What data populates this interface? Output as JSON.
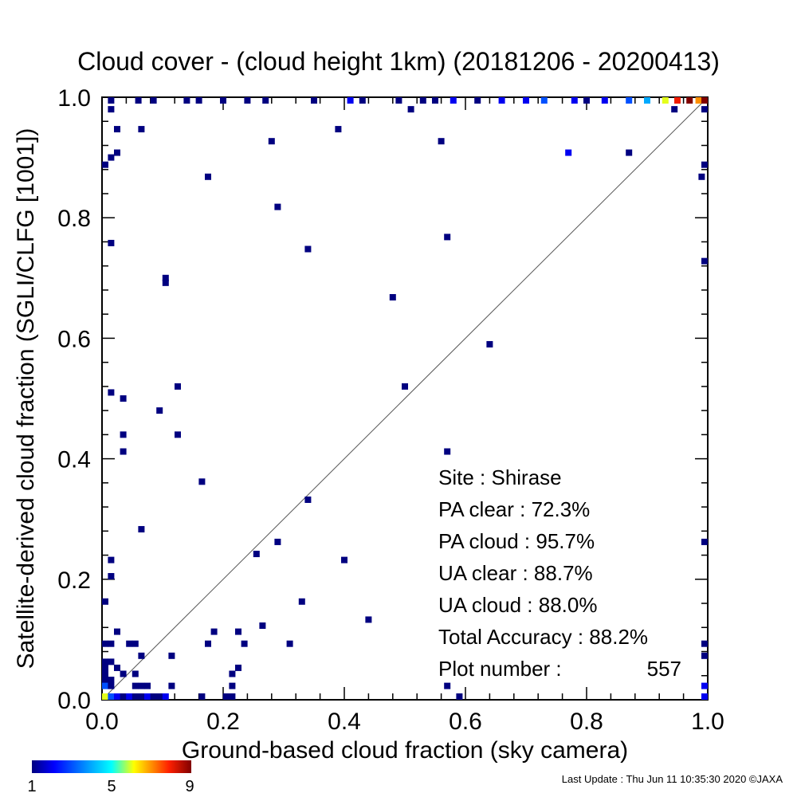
{
  "chart_data": {
    "type": "scatter",
    "title": "Cloud cover - (cloud height 1km)  (20181206 - 20200413)",
    "xlabel": "Ground-based cloud fraction (sky camera)",
    "ylabel": "Satellite-derived cloud fraction (SGLI/CLFG [1001])",
    "xlim": [
      0,
      1
    ],
    "ylim": [
      0,
      1
    ],
    "xticks": [
      "0.0",
      "0.2",
      "0.4",
      "0.6",
      "0.8",
      "1.0"
    ],
    "yticks": [
      "0.0",
      "0.2",
      "0.4",
      "0.6",
      "0.8",
      "1.0"
    ],
    "grid": false,
    "reference_line": "1:1 diagonal",
    "colorbar": {
      "min_label": "1",
      "mid_label": "5",
      "max_label": "9",
      "min": 1,
      "max": 9
    },
    "points": [
      {
        "x": 0.015,
        "y": 0.998,
        "c": 1
      },
      {
        "x": 0.06,
        "y": 0.998,
        "c": 1
      },
      {
        "x": 0.085,
        "y": 0.998,
        "c": 1
      },
      {
        "x": 0.14,
        "y": 0.998,
        "c": 1
      },
      {
        "x": 0.16,
        "y": 0.998,
        "c": 1
      },
      {
        "x": 0.2,
        "y": 0.998,
        "c": 1
      },
      {
        "x": 0.24,
        "y": 0.998,
        "c": 1
      },
      {
        "x": 0.27,
        "y": 0.998,
        "c": 1
      },
      {
        "x": 0.35,
        "y": 0.998,
        "c": 1
      },
      {
        "x": 0.41,
        "y": 0.998,
        "c": 2
      },
      {
        "x": 0.43,
        "y": 0.998,
        "c": 1
      },
      {
        "x": 0.49,
        "y": 0.998,
        "c": 1
      },
      {
        "x": 0.53,
        "y": 0.998,
        "c": 1
      },
      {
        "x": 0.55,
        "y": 0.998,
        "c": 1
      },
      {
        "x": 0.58,
        "y": 0.998,
        "c": 2
      },
      {
        "x": 0.62,
        "y": 0.998,
        "c": 1
      },
      {
        "x": 0.66,
        "y": 0.998,
        "c": 2
      },
      {
        "x": 0.7,
        "y": 0.998,
        "c": 2
      },
      {
        "x": 0.73,
        "y": 0.998,
        "c": 3
      },
      {
        "x": 0.78,
        "y": 0.998,
        "c": 2
      },
      {
        "x": 0.8,
        "y": 0.998,
        "c": 1
      },
      {
        "x": 0.83,
        "y": 0.998,
        "c": 2
      },
      {
        "x": 0.87,
        "y": 0.998,
        "c": 3
      },
      {
        "x": 0.9,
        "y": 0.998,
        "c": 4
      },
      {
        "x": 0.93,
        "y": 0.998,
        "c": 6
      },
      {
        "x": 0.95,
        "y": 0.998,
        "c": 8
      },
      {
        "x": 0.97,
        "y": 0.998,
        "c": 9
      },
      {
        "x": 0.985,
        "y": 0.998,
        "c": 7
      },
      {
        "x": 0.998,
        "y": 0.998,
        "c": 9
      },
      {
        "x": 0.015,
        "y": 0.98,
        "c": 1
      },
      {
        "x": 0.51,
        "y": 0.98,
        "c": 1
      },
      {
        "x": 0.945,
        "y": 0.98,
        "c": 1
      },
      {
        "x": 0.998,
        "y": 0.98,
        "c": 1
      },
      {
        "x": 0.025,
        "y": 0.947,
        "c": 1
      },
      {
        "x": 0.065,
        "y": 0.947,
        "c": 1
      },
      {
        "x": 0.39,
        "y": 0.947,
        "c": 1
      },
      {
        "x": 0.28,
        "y": 0.927,
        "c": 1
      },
      {
        "x": 0.56,
        "y": 0.927,
        "c": 1
      },
      {
        "x": 0.025,
        "y": 0.908,
        "c": 1
      },
      {
        "x": 0.77,
        "y": 0.908,
        "c": 2
      },
      {
        "x": 0.87,
        "y": 0.908,
        "c": 1
      },
      {
        "x": 0.015,
        "y": 0.9,
        "c": 1
      },
      {
        "x": 0.005,
        "y": 0.888,
        "c": 1
      },
      {
        "x": 0.998,
        "y": 0.888,
        "c": 1
      },
      {
        "x": 0.175,
        "y": 0.868,
        "c": 1
      },
      {
        "x": 0.99,
        "y": 0.868,
        "c": 1
      },
      {
        "x": 0.29,
        "y": 0.818,
        "c": 1
      },
      {
        "x": 0.57,
        "y": 0.768,
        "c": 1
      },
      {
        "x": 0.015,
        "y": 0.758,
        "c": 1
      },
      {
        "x": 0.34,
        "y": 0.748,
        "c": 1
      },
      {
        "x": 0.998,
        "y": 0.728,
        "c": 1
      },
      {
        "x": 0.105,
        "y": 0.7,
        "c": 1
      },
      {
        "x": 0.105,
        "y": 0.692,
        "c": 1
      },
      {
        "x": 0.48,
        "y": 0.668,
        "c": 1
      },
      {
        "x": 0.64,
        "y": 0.59,
        "c": 1
      },
      {
        "x": 0.125,
        "y": 0.52,
        "c": 1
      },
      {
        "x": 0.5,
        "y": 0.52,
        "c": 1
      },
      {
        "x": 0.015,
        "y": 0.51,
        "c": 1
      },
      {
        "x": 0.035,
        "y": 0.5,
        "c": 1
      },
      {
        "x": 0.095,
        "y": 0.48,
        "c": 1
      },
      {
        "x": 0.035,
        "y": 0.44,
        "c": 1
      },
      {
        "x": 0.125,
        "y": 0.44,
        "c": 1
      },
      {
        "x": 0.035,
        "y": 0.412,
        "c": 1
      },
      {
        "x": 0.57,
        "y": 0.412,
        "c": 1
      },
      {
        "x": 0.165,
        "y": 0.362,
        "c": 1
      },
      {
        "x": 0.34,
        "y": 0.332,
        "c": 1
      },
      {
        "x": 0.065,
        "y": 0.283,
        "c": 1
      },
      {
        "x": 0.29,
        "y": 0.262,
        "c": 1
      },
      {
        "x": 0.998,
        "y": 0.262,
        "c": 1
      },
      {
        "x": 0.255,
        "y": 0.242,
        "c": 1
      },
      {
        "x": 0.015,
        "y": 0.232,
        "c": 1
      },
      {
        "x": 0.4,
        "y": 0.232,
        "c": 1
      },
      {
        "x": 0.015,
        "y": 0.205,
        "c": 1
      },
      {
        "x": 0.005,
        "y": 0.163,
        "c": 1
      },
      {
        "x": 0.33,
        "y": 0.163,
        "c": 1
      },
      {
        "x": 0.44,
        "y": 0.133,
        "c": 1
      },
      {
        "x": 0.265,
        "y": 0.123,
        "c": 1
      },
      {
        "x": 0.025,
        "y": 0.113,
        "c": 1
      },
      {
        "x": 0.185,
        "y": 0.113,
        "c": 1
      },
      {
        "x": 0.225,
        "y": 0.113,
        "c": 1
      },
      {
        "x": 0.005,
        "y": 0.093,
        "c": 1
      },
      {
        "x": 0.015,
        "y": 0.093,
        "c": 1
      },
      {
        "x": 0.045,
        "y": 0.093,
        "c": 1
      },
      {
        "x": 0.055,
        "y": 0.093,
        "c": 1
      },
      {
        "x": 0.175,
        "y": 0.093,
        "c": 1
      },
      {
        "x": 0.235,
        "y": 0.093,
        "c": 1
      },
      {
        "x": 0.31,
        "y": 0.093,
        "c": 1
      },
      {
        "x": 0.998,
        "y": 0.093,
        "c": 1
      },
      {
        "x": 0.065,
        "y": 0.073,
        "c": 1
      },
      {
        "x": 0.115,
        "y": 0.073,
        "c": 1
      },
      {
        "x": 0.998,
        "y": 0.073,
        "c": 1
      },
      {
        "x": 0.005,
        "y": 0.063,
        "c": 1
      },
      {
        "x": 0.015,
        "y": 0.063,
        "c": 1
      },
      {
        "x": 0.025,
        "y": 0.053,
        "c": 1
      },
      {
        "x": 0.005,
        "y": 0.053,
        "c": 1
      },
      {
        "x": 0.225,
        "y": 0.053,
        "c": 1
      },
      {
        "x": 0.005,
        "y": 0.043,
        "c": 1
      },
      {
        "x": 0.035,
        "y": 0.043,
        "c": 1
      },
      {
        "x": 0.055,
        "y": 0.043,
        "c": 1
      },
      {
        "x": 0.215,
        "y": 0.043,
        "c": 1
      },
      {
        "x": 0.005,
        "y": 0.033,
        "c": 1
      },
      {
        "x": 0.015,
        "y": 0.033,
        "c": 1
      },
      {
        "x": 0.005,
        "y": 0.023,
        "c": 3
      },
      {
        "x": 0.015,
        "y": 0.023,
        "c": 1
      },
      {
        "x": 0.055,
        "y": 0.023,
        "c": 1
      },
      {
        "x": 0.065,
        "y": 0.023,
        "c": 1
      },
      {
        "x": 0.075,
        "y": 0.023,
        "c": 1
      },
      {
        "x": 0.115,
        "y": 0.023,
        "c": 1
      },
      {
        "x": 0.215,
        "y": 0.023,
        "c": 1
      },
      {
        "x": 0.57,
        "y": 0.023,
        "c": 1
      },
      {
        "x": 0.998,
        "y": 0.023,
        "c": 2
      },
      {
        "x": 0.005,
        "y": 0.003,
        "c": 6
      },
      {
        "x": 0.015,
        "y": 0.003,
        "c": 3
      },
      {
        "x": 0.025,
        "y": 0.003,
        "c": 2
      },
      {
        "x": 0.035,
        "y": 0.003,
        "c": 1
      },
      {
        "x": 0.045,
        "y": 0.003,
        "c": 2
      },
      {
        "x": 0.055,
        "y": 0.003,
        "c": 1
      },
      {
        "x": 0.065,
        "y": 0.003,
        "c": 1
      },
      {
        "x": 0.075,
        "y": 0.003,
        "c": 2
      },
      {
        "x": 0.085,
        "y": 0.003,
        "c": 1
      },
      {
        "x": 0.095,
        "y": 0.003,
        "c": 1
      },
      {
        "x": 0.105,
        "y": 0.003,
        "c": 2
      },
      {
        "x": 0.165,
        "y": 0.003,
        "c": 1
      },
      {
        "x": 0.205,
        "y": 0.003,
        "c": 1
      },
      {
        "x": 0.215,
        "y": 0.003,
        "c": 1
      },
      {
        "x": 0.59,
        "y": 0.003,
        "c": 1
      },
      {
        "x": 0.998,
        "y": 0.003,
        "c": 2
      }
    ],
    "annotations": {
      "site": "Site : Shirase",
      "pa_clear": "PA clear :  72.3%",
      "pa_cloud": "PA cloud :  95.7%",
      "ua_clear": "UA clear :  88.7%",
      "ua_cloud": "UA cloud :  88.0%",
      "total_accuracy": "Total Accuracy :  88.2%",
      "plot_number_label": "Plot number :",
      "plot_number_value": "557"
    }
  },
  "footer": {
    "last_update": "Last Update : Thu Jun 11 10:35:30 2020  ©JAXA"
  }
}
